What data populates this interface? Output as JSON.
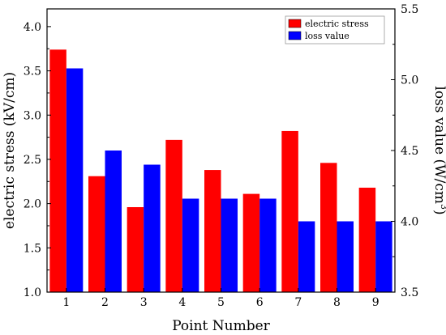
{
  "chart_data": {
    "type": "bar",
    "title": "",
    "xlabel": "Point Number",
    "ylabel_left": "electric stress (kV/cm)",
    "ylabel_right_main": "loss value (W/cm",
    "ylabel_right_sup": "3",
    "ylabel_right_close": ")",
    "categories": [
      "1",
      "2",
      "3",
      "4",
      "5",
      "6",
      "7",
      "8",
      "9"
    ],
    "ylim_left": [
      1.0,
      4.2
    ],
    "ylim_right": [
      3.5,
      5.5
    ],
    "yticks_left": [
      "1.0",
      "1.5",
      "2.0",
      "2.5",
      "3.0",
      "3.5",
      "4.0"
    ],
    "yticks_right": [
      "3.5",
      "4.0",
      "4.5",
      "5.0",
      "5.5"
    ],
    "legend_position": "top-right",
    "series": [
      {
        "name": "electric stress",
        "axis": "left",
        "color": "#ff0000",
        "values": [
          3.74,
          2.31,
          1.96,
          2.72,
          2.38,
          2.11,
          2.82,
          2.46,
          2.18
        ]
      },
      {
        "name": "loss value",
        "axis": "right",
        "color": "#0000ff",
        "values": [
          5.08,
          4.5,
          4.4,
          4.16,
          4.16,
          4.16,
          4.0,
          4.0,
          4.0
        ]
      }
    ]
  }
}
